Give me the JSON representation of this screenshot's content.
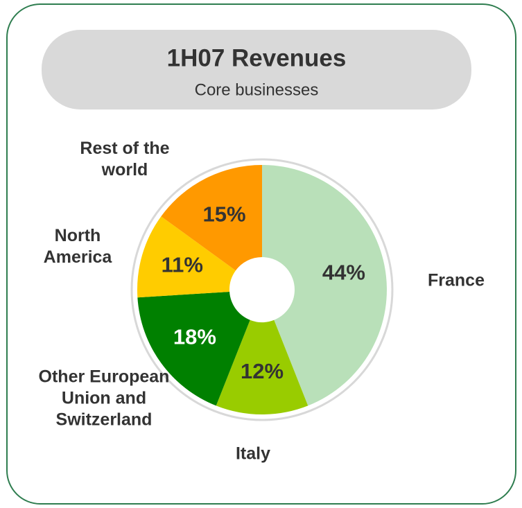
{
  "chart_data": {
    "type": "donut",
    "title": "1H07 Revenues",
    "subtitle": "Core businesses",
    "categories": [
      "France",
      "Italy",
      "Other European Union and Switzerland",
      "North America",
      "Rest of the world"
    ],
    "values": [
      44,
      12,
      18,
      11,
      15
    ],
    "value_labels": [
      "44%",
      "12%",
      "18%",
      "11%",
      "15%"
    ],
    "colors": [
      "#b9e0b9",
      "#99cc00",
      "#008000",
      "#ffcc00",
      "#ff9900"
    ]
  }
}
